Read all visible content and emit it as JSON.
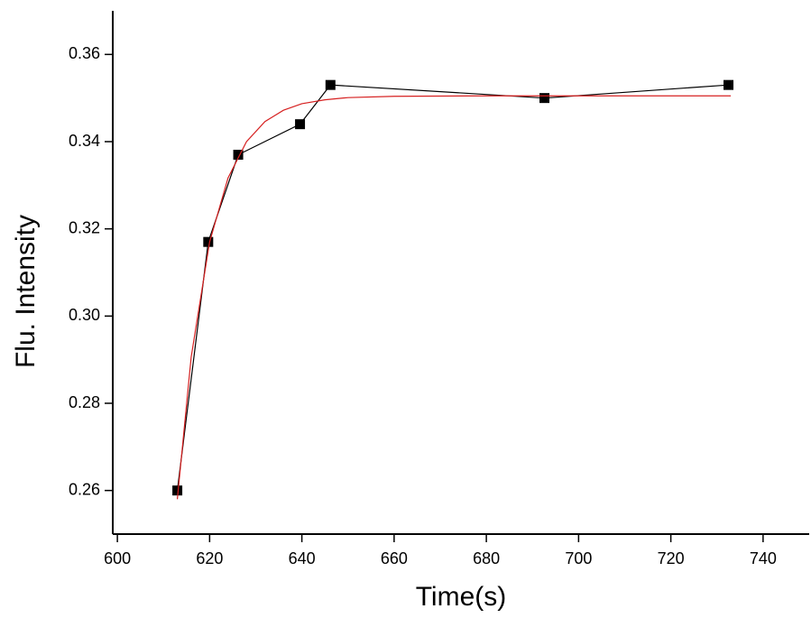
{
  "chart_data": {
    "type": "line",
    "x_label": "Time(s)",
    "y_label": "Flu. Intensity",
    "xlim": [
      599,
      750
    ],
    "ylim": [
      0.25,
      0.37
    ],
    "xticks": [
      600,
      620,
      640,
      660,
      680,
      700,
      720,
      740
    ],
    "yticks": [
      {
        "value": 0.26,
        "label": "0.26"
      },
      {
        "value": 0.28,
        "label": "0.28"
      },
      {
        "value": 0.3,
        "label": "0.30"
      },
      {
        "value": 0.32,
        "label": "0.32"
      },
      {
        "value": 0.34,
        "label": "0.34"
      },
      {
        "value": 0.36,
        "label": "0.36"
      }
    ],
    "series": [
      {
        "color": "#000000",
        "marker": "square",
        "x": [
          613,
          619.7,
          626.2,
          639.6,
          646.2,
          692.6,
          732.5
        ],
        "values": [
          0.26,
          0.317,
          0.337,
          0.344,
          0.353,
          0.35,
          0.353
        ]
      },
      {
        "color": "#d62020",
        "marker": "none",
        "x": [
          613,
          616,
          620,
          624,
          628,
          632,
          636,
          640,
          645,
          650,
          660,
          680,
          700,
          720,
          733
        ],
        "values": [
          0.258,
          0.2906,
          0.317,
          0.3317,
          0.34,
          0.3446,
          0.3472,
          0.3487,
          0.3496,
          0.3501,
          0.3504,
          0.3505,
          0.3505,
          0.3505,
          0.3505
        ]
      }
    ]
  }
}
